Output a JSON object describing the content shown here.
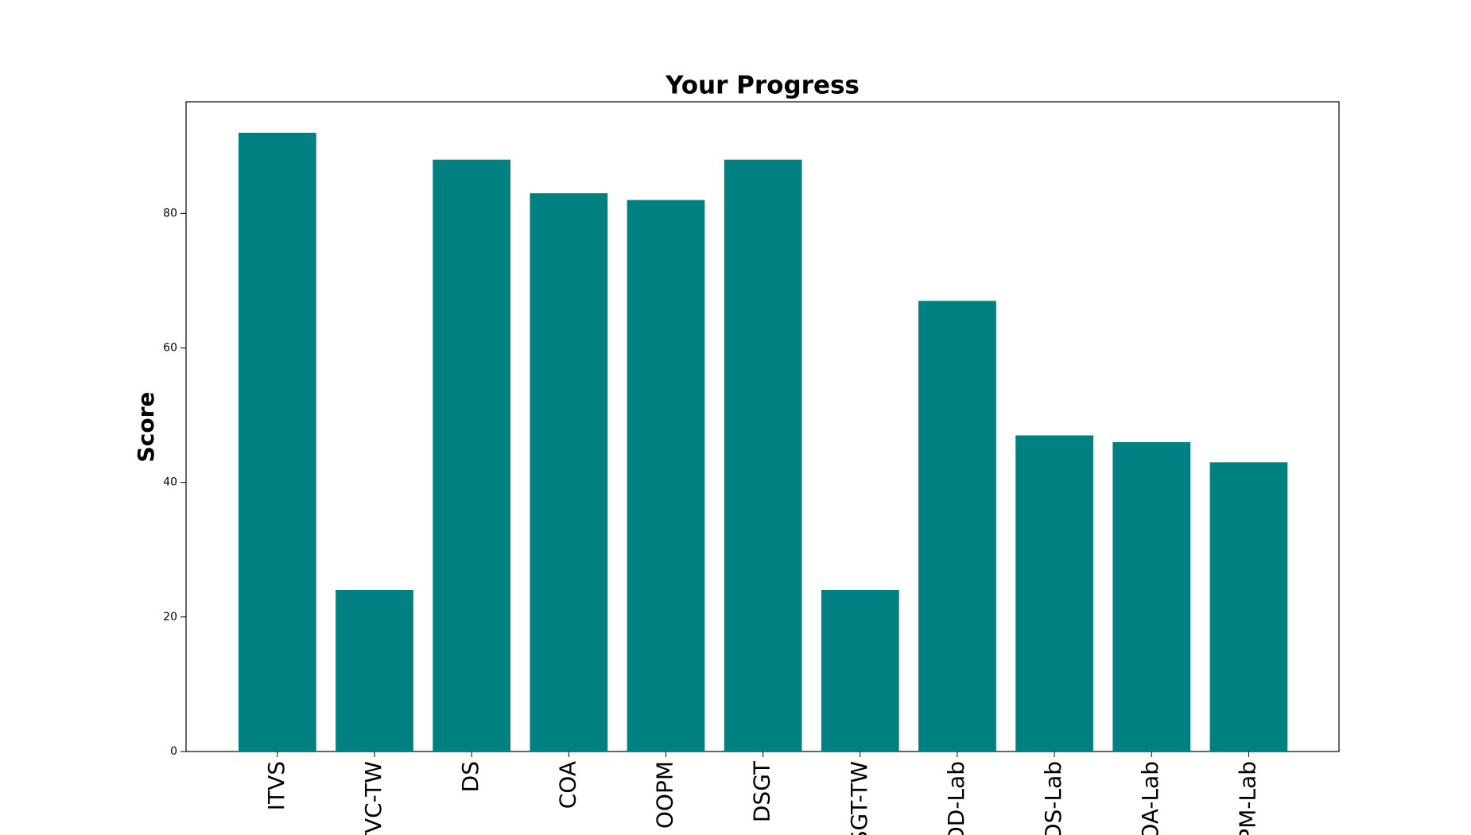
{
  "chart_data": {
    "type": "bar",
    "title": "Your Progress",
    "y_label": "Score",
    "categories": [
      "ITVS",
      "TVC-TW",
      "DS",
      "COA",
      "OOPM",
      "DSGT",
      "SGT-TW",
      "DD-Lab",
      "DS-Lab",
      "COA-Lab",
      "PM-Lab"
    ],
    "values": [
      92,
      24,
      88,
      83,
      82,
      88,
      24,
      67,
      47,
      46,
      43
    ],
    "color": "#008080",
    "ylim": [
      0,
      96.6
    ],
    "yticks": [
      0,
      20,
      40,
      60,
      80
    ],
    "grid": false
  }
}
